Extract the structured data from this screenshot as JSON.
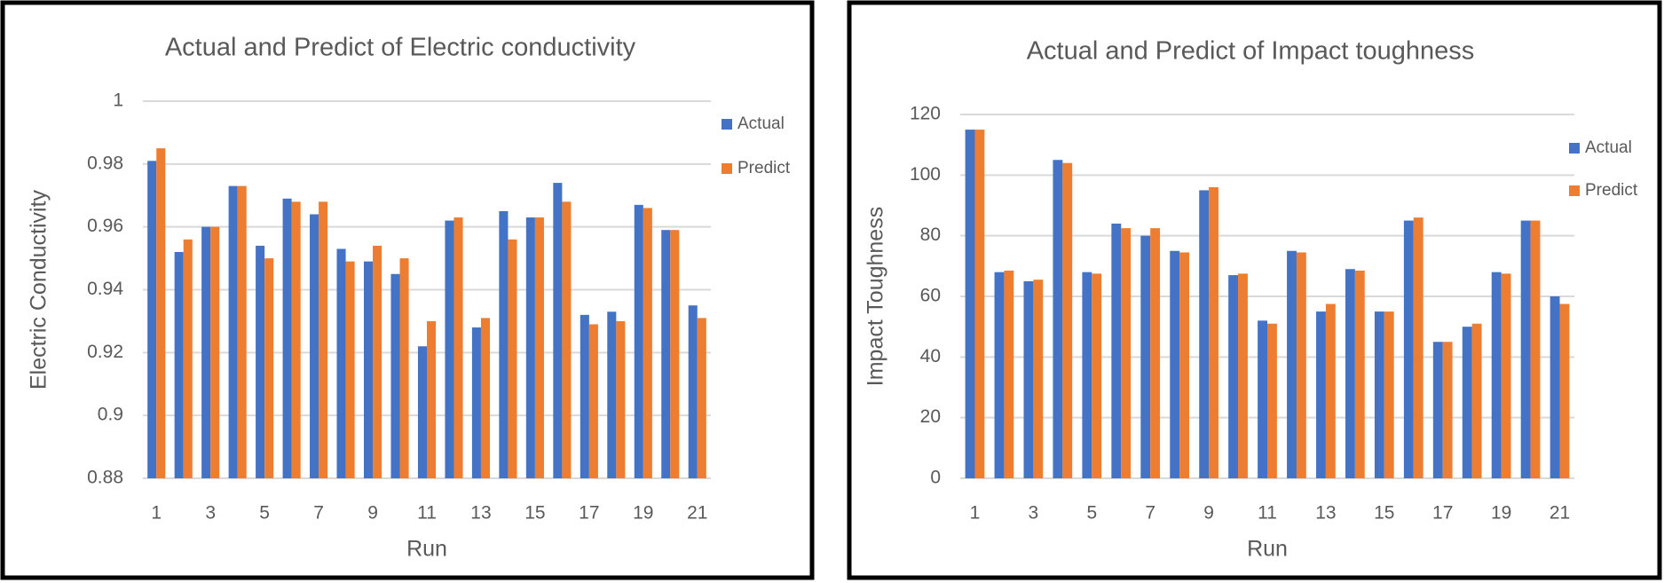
{
  "chart_data": [
    {
      "type": "bar",
      "title": "Actual and Predict of Electric conductivity",
      "x_label": "Run",
      "y_label": "Electric Conductivity",
      "categories": [
        "1",
        null,
        "3",
        null,
        "5",
        null,
        "7",
        null,
        "9",
        null,
        "11",
        null,
        "13",
        null,
        "15",
        null,
        "17",
        null,
        "19",
        null,
        "21"
      ],
      "series": [
        {
          "name": "Actual",
          "color": "#4472c4",
          "values": [
            0.981,
            0.952,
            0.96,
            0.973,
            0.954,
            0.969,
            0.964,
            0.953,
            0.949,
            0.945,
            0.922,
            0.962,
            0.928,
            0.965,
            0.963,
            0.974,
            0.932,
            0.933,
            0.967,
            0.959,
            0.935
          ]
        },
        {
          "name": "Predict",
          "color": "#ed7d31",
          "values": [
            0.985,
            0.956,
            0.96,
            0.973,
            0.95,
            0.968,
            0.968,
            0.949,
            0.954,
            0.95,
            0.93,
            0.963,
            0.931,
            0.956,
            0.963,
            0.968,
            0.929,
            0.93,
            0.966,
            0.959,
            0.931
          ]
        }
      ],
      "ylim": [
        0.88,
        1
      ],
      "yticks": [
        0.88,
        0.9,
        0.92,
        0.94,
        0.96,
        0.98,
        1
      ],
      "grid": true,
      "legend": "right"
    },
    {
      "type": "bar",
      "title": "Actual and Predict of Impact toughness",
      "x_label": "Run",
      "y_label": "Impact Toughness",
      "categories": [
        "1",
        null,
        "3",
        null,
        "5",
        null,
        "7",
        null,
        "9",
        null,
        "11",
        null,
        "13",
        null,
        "15",
        null,
        "17",
        null,
        "19",
        null,
        "21"
      ],
      "series": [
        {
          "name": "Actual",
          "color": "#4472c4",
          "values": [
            115,
            68,
            65,
            105,
            68,
            84,
            80,
            75,
            95,
            67,
            52,
            75,
            55,
            69,
            55,
            85,
            45,
            50,
            68,
            85,
            60
          ]
        },
        {
          "name": "Predict",
          "color": "#ed7d31",
          "values": [
            115,
            68.5,
            65.5,
            104,
            67.5,
            82.5,
            82.5,
            74.5,
            96,
            67.5,
            51,
            74.5,
            57.5,
            68.5,
            55,
            86,
            45,
            51,
            67.5,
            85,
            57.5
          ]
        }
      ],
      "ylim": [
        0,
        120
      ],
      "yticks": [
        0,
        20,
        40,
        60,
        80,
        100,
        120
      ],
      "grid": true,
      "legend": "right"
    }
  ]
}
